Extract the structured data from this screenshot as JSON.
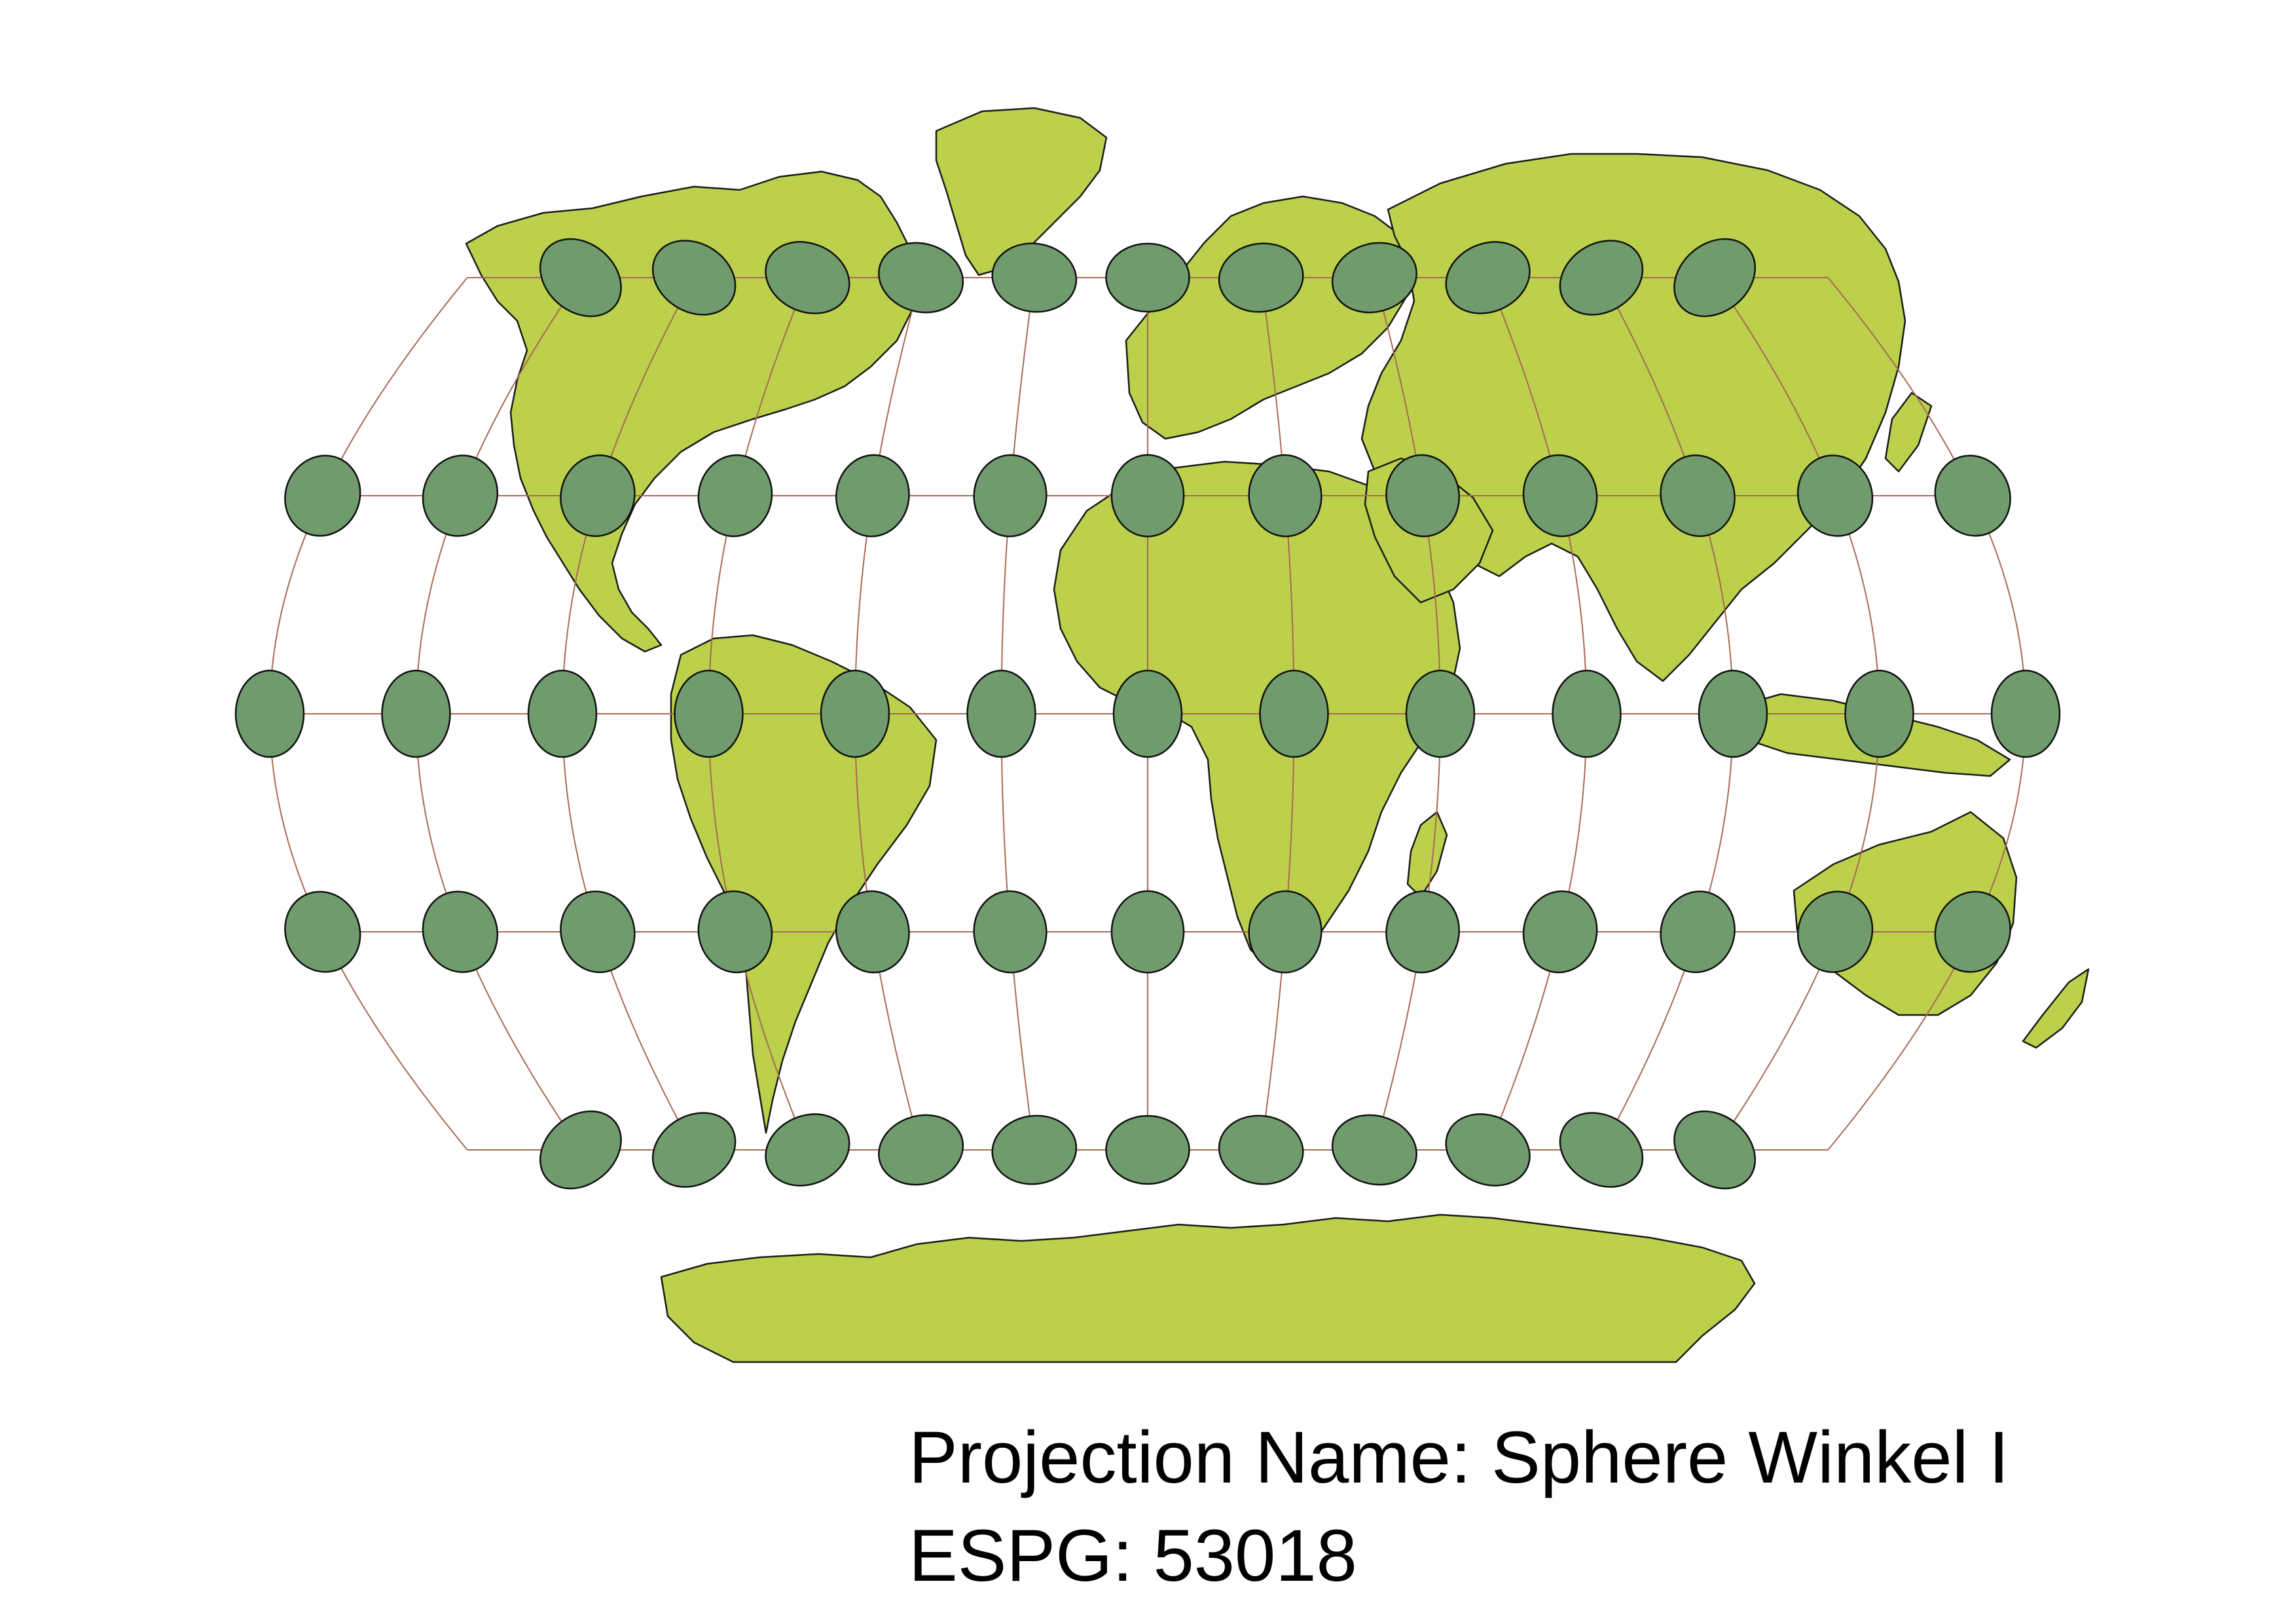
{
  "map": {
    "projection_label": "Projection Name: Sphere Winkel I",
    "code_label": "ESPG: 53018",
    "graticule": {
      "longitudes": [
        -180,
        -150,
        -120,
        -90,
        -60,
        -30,
        0,
        30,
        60,
        90,
        120,
        150,
        180
      ],
      "latitudes": [
        -60,
        -30,
        0,
        30,
        60
      ]
    },
    "indicatrix": {
      "longitudes": [
        -150,
        -120,
        -90,
        -60,
        -30,
        0,
        30,
        60,
        90,
        120,
        150
      ],
      "outer_longitudes": [
        -180,
        180
      ],
      "latitudes": [
        -60,
        -30,
        0,
        30,
        60
      ]
    },
    "colors": {
      "land": "#bcd04b",
      "land_outline": "#1a1a1a",
      "graticule": "#a86a55",
      "ellipse_fill": "#6f9b6d",
      "ellipse_stroke": "#111111",
      "background": "#ffffff"
    }
  }
}
